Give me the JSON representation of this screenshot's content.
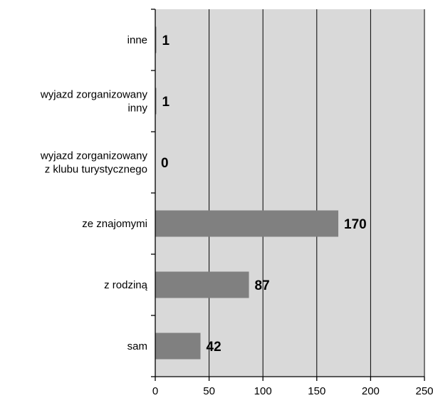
{
  "chart_data": {
    "type": "bar",
    "orientation": "horizontal",
    "categories": [
      [
        "inne"
      ],
      [
        "wyjazd zorganizowany",
        "inny"
      ],
      [
        "wyjazd zorganizowany",
        "z klubu turystycznego"
      ],
      [
        "ze znajomymi"
      ],
      [
        "z rodziną"
      ],
      [
        "sam"
      ]
    ],
    "values": [
      1,
      1,
      0,
      170,
      87,
      42
    ],
    "data_labels": [
      "1",
      "1",
      "0",
      "170",
      "87",
      "42"
    ],
    "xlim": [
      0,
      250
    ],
    "x_ticks": [
      0,
      50,
      100,
      150,
      200,
      250
    ],
    "x_tick_labels": [
      "0",
      "50",
      "100",
      "150",
      "200",
      "250"
    ],
    "grid": "vertical",
    "legend": "none",
    "colors": {
      "plot_background": "#d9d9d9",
      "bar": "#808080",
      "grid": "#000000",
      "axis": "#000000"
    }
  }
}
